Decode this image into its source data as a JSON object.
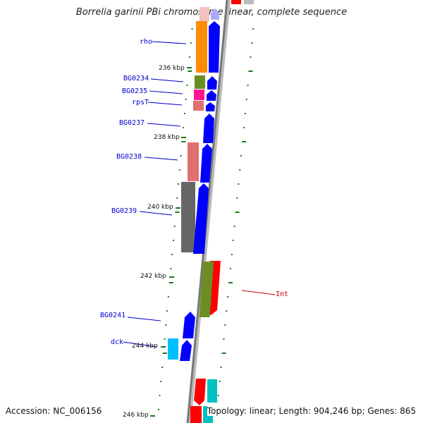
{
  "title": "Borrelia garinii PBi chromosome linear, complete sequence",
  "footer": {
    "accession": "Accession: NC_006156",
    "summary": "Topology: linear; Length: 904,246 bp; Genes: 865"
  },
  "ticks": [
    "236 kbp",
    "238 kbp",
    "240 kbp",
    "242 kbp",
    "244 kbp",
    "246 kbp"
  ],
  "gene_labels": [
    {
      "name": "rho",
      "color": "#0000cc"
    },
    {
      "name": "BG0234",
      "color": "#0000cc"
    },
    {
      "name": "BG0235",
      "color": "#0000cc"
    },
    {
      "name": "rpsT",
      "color": "#0000cc"
    },
    {
      "name": "BG0237",
      "color": "#0000cc"
    },
    {
      "name": "BG0238",
      "color": "#0000cc"
    },
    {
      "name": "BG0239",
      "color": "#0000cc"
    },
    {
      "name": "Int",
      "color": "#cc0000"
    },
    {
      "name": "BG0241",
      "color": "#0000cc"
    },
    {
      "name": "dck",
      "color": "#0000cc"
    }
  ],
  "colors": {
    "cds": "#0000ff",
    "orange": "#ff8c00",
    "olive": "#6b8e23",
    "magenta": "#ff1493",
    "salmon": "#e07070",
    "gray": "#666666",
    "red": "#ff0000",
    "cyan": "#00bfff",
    "teal": "#00c0c0",
    "tick": "#1a7a1a"
  }
}
